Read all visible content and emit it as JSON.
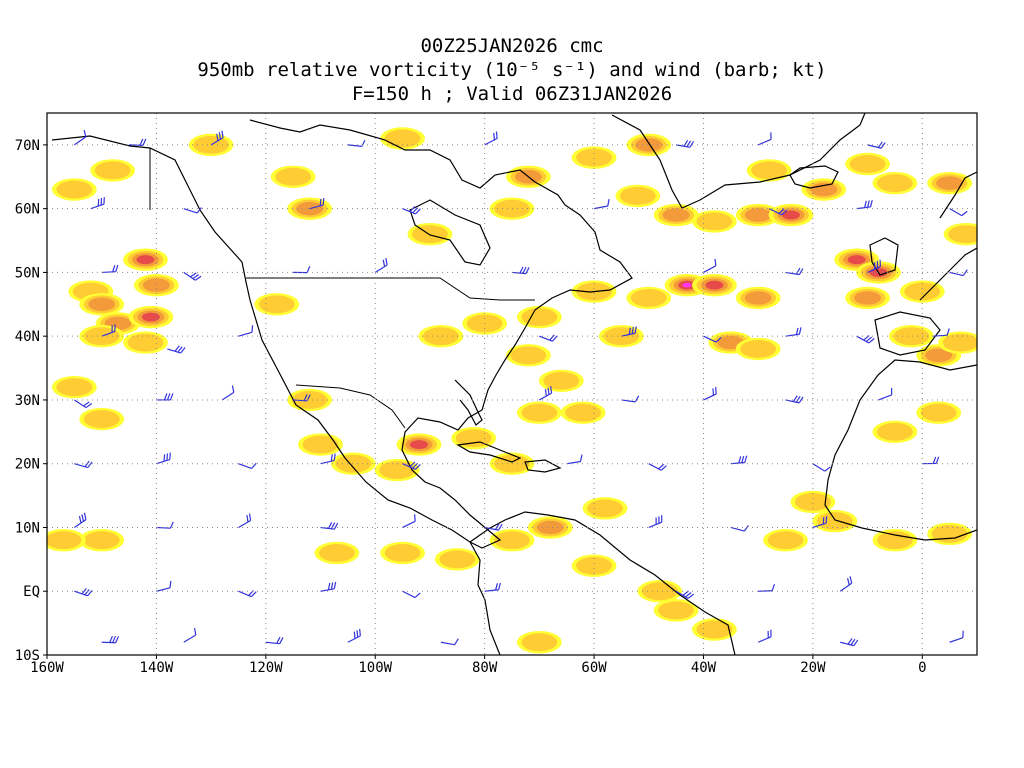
{
  "title": {
    "line1": "00Z25JAN2026 cmc",
    "line2": "950mb relative vorticity (10⁻⁵ s⁻¹) and wind (barb; kt)",
    "line3": "F=150 h ; Valid 06Z31JAN2026"
  },
  "axes": {
    "lon_labels": [
      "160W",
      "140W",
      "120W",
      "100W",
      "80W",
      "60W",
      "40W",
      "20W",
      "0"
    ],
    "lat_labels": [
      "70N",
      "60N",
      "50N",
      "40N",
      "30N",
      "20N",
      "10N",
      "EQ",
      "10S"
    ],
    "lon_values": [
      -160,
      -140,
      -120,
      -100,
      -80,
      -60,
      -40,
      -20,
      0
    ],
    "lat_values": [
      70,
      60,
      50,
      40,
      30,
      20,
      10,
      0,
      -10
    ],
    "lon_range": [
      -160,
      10
    ],
    "lat_range": [
      -10,
      75
    ],
    "grid": "dotted"
  },
  "colors": {
    "coast": "#000000",
    "barb": "#3333dd",
    "shade_light": "#ffff33",
    "shade_mid": "#ffcc33",
    "shade_orange": "#f39a3a",
    "shade_red": "#e64a4a",
    "shade_magenta": "#ff33ff"
  },
  "vorticity_blobs": [
    {
      "lon": -152,
      "lat": 47,
      "level": 1
    },
    {
      "lon": -150,
      "lat": 45,
      "level": 2
    },
    {
      "lon": -147,
      "lat": 42,
      "level": 2
    },
    {
      "lon": -142,
      "lat": 52,
      "level": 3
    },
    {
      "lon": -141,
      "lat": 43,
      "level": 3
    },
    {
      "lon": -140,
      "lat": 48,
      "level": 2
    },
    {
      "lon": -142,
      "lat": 39,
      "level": 1
    },
    {
      "lon": -150,
      "lat": 40,
      "level": 1
    },
    {
      "lon": -155,
      "lat": 63,
      "level": 1
    },
    {
      "lon": -148,
      "lat": 66,
      "level": 1
    },
    {
      "lon": -130,
      "lat": 70,
      "level": 1
    },
    {
      "lon": -115,
      "lat": 65,
      "level": 1
    },
    {
      "lon": -112,
      "lat": 60,
      "level": 2
    },
    {
      "lon": -95,
      "lat": 71,
      "level": 1
    },
    {
      "lon": -72,
      "lat": 65,
      "level": 2
    },
    {
      "lon": -75,
      "lat": 60,
      "level": 1
    },
    {
      "lon": -90,
      "lat": 56,
      "level": 1
    },
    {
      "lon": -80,
      "lat": 42,
      "level": 1
    },
    {
      "lon": -88,
      "lat": 40,
      "level": 1
    },
    {
      "lon": -70,
      "lat": 43,
      "level": 1
    },
    {
      "lon": -60,
      "lat": 47,
      "level": 1
    },
    {
      "lon": -50,
      "lat": 70,
      "level": 2
    },
    {
      "lon": -52,
      "lat": 62,
      "level": 1
    },
    {
      "lon": -45,
      "lat": 59,
      "level": 2
    },
    {
      "lon": -30,
      "lat": 59,
      "level": 2
    },
    {
      "lon": -24,
      "lat": 59,
      "level": 3
    },
    {
      "lon": -38,
      "lat": 58,
      "level": 1
    },
    {
      "lon": -43,
      "lat": 48,
      "level": 4
    },
    {
      "lon": -38,
      "lat": 48,
      "level": 3
    },
    {
      "lon": -50,
      "lat": 46,
      "level": 1
    },
    {
      "lon": -30,
      "lat": 46,
      "level": 2
    },
    {
      "lon": -35,
      "lat": 39,
      "level": 2
    },
    {
      "lon": -30,
      "lat": 38,
      "level": 1
    },
    {
      "lon": -55,
      "lat": 40,
      "level": 1
    },
    {
      "lon": -72,
      "lat": 37,
      "level": 1
    },
    {
      "lon": -66,
      "lat": 33,
      "level": 1
    },
    {
      "lon": -70,
      "lat": 28,
      "level": 1
    },
    {
      "lon": -62,
      "lat": 28,
      "level": 1
    },
    {
      "lon": -92,
      "lat": 23,
      "level": 3
    },
    {
      "lon": -96,
      "lat": 19,
      "level": 1
    },
    {
      "lon": -104,
      "lat": 20,
      "level": 1
    },
    {
      "lon": -112,
      "lat": 30,
      "level": 1
    },
    {
      "lon": -110,
      "lat": 23,
      "level": 1
    },
    {
      "lon": -82,
      "lat": 24,
      "level": 1
    },
    {
      "lon": -75,
      "lat": 20,
      "level": 1
    },
    {
      "lon": -12,
      "lat": 52,
      "level": 3
    },
    {
      "lon": -8,
      "lat": 50,
      "level": 3
    },
    {
      "lon": -10,
      "lat": 46,
      "level": 2
    },
    {
      "lon": -18,
      "lat": 63,
      "level": 2
    },
    {
      "lon": -10,
      "lat": 67,
      "level": 1
    },
    {
      "lon": -28,
      "lat": 66,
      "level": 1
    },
    {
      "lon": -5,
      "lat": 64,
      "level": 1
    },
    {
      "lon": 5,
      "lat": 64,
      "level": 2
    },
    {
      "lon": 8,
      "lat": 56,
      "level": 1
    },
    {
      "lon": 0,
      "lat": 47,
      "level": 1
    },
    {
      "lon": -2,
      "lat": 40,
      "level": 1
    },
    {
      "lon": 3,
      "lat": 37,
      "level": 2
    },
    {
      "lon": 7,
      "lat": 39,
      "level": 1
    },
    {
      "lon": -20,
      "lat": 14,
      "level": 1
    },
    {
      "lon": -16,
      "lat": 11,
      "level": 1
    },
    {
      "lon": -25,
      "lat": 8,
      "level": 1
    },
    {
      "lon": -5,
      "lat": 8,
      "level": 1
    },
    {
      "lon": 5,
      "lat": 9,
      "level": 1
    },
    {
      "lon": -68,
      "lat": 10,
      "level": 2
    },
    {
      "lon": -75,
      "lat": 8,
      "level": 1
    },
    {
      "lon": -85,
      "lat": 5,
      "level": 1
    },
    {
      "lon": -95,
      "lat": 6,
      "level": 1
    },
    {
      "lon": -107,
      "lat": 6,
      "level": 1
    },
    {
      "lon": -150,
      "lat": 8,
      "level": 1
    },
    {
      "lon": -157,
      "lat": 8,
      "level": 1
    },
    {
      "lon": -60,
      "lat": 4,
      "level": 1
    },
    {
      "lon": -48,
      "lat": 0,
      "level": 1
    },
    {
      "lon": -70,
      "lat": -8,
      "level": 1
    },
    {
      "lon": -38,
      "lat": -6,
      "level": 1
    },
    {
      "lon": -45,
      "lat": -3,
      "level": 1
    },
    {
      "lon": -150,
      "lat": 27,
      "level": 1
    },
    {
      "lon": -155,
      "lat": 32,
      "level": 1
    },
    {
      "lon": -118,
      "lat": 45,
      "level": 1
    },
    {
      "lon": -60,
      "lat": 68,
      "level": 1
    },
    {
      "lon": -5,
      "lat": 25,
      "level": 1
    },
    {
      "lon": 3,
      "lat": 28,
      "level": 1
    },
    {
      "lon": -58,
      "lat": 13,
      "level": 1
    }
  ],
  "wind_barbs": [
    {
      "lon": -155,
      "lat": 70
    },
    {
      "lon": -145,
      "lat": 70
    },
    {
      "lon": -130,
      "lat": 70
    },
    {
      "lon": -105,
      "lat": 70
    },
    {
      "lon": -80,
      "lat": 70
    },
    {
      "lon": -45,
      "lat": 70
    },
    {
      "lon": -30,
      "lat": 70
    },
    {
      "lon": -10,
      "lat": 70
    },
    {
      "lon": -152,
      "lat": 60
    },
    {
      "lon": -135,
      "lat": 60
    },
    {
      "lon": -112,
      "lat": 60
    },
    {
      "lon": -95,
      "lat": 60
    },
    {
      "lon": -60,
      "lat": 60
    },
    {
      "lon": -28,
      "lat": 60
    },
    {
      "lon": -12,
      "lat": 60
    },
    {
      "lon": 5,
      "lat": 60
    },
    {
      "lon": -150,
      "lat": 50
    },
    {
      "lon": -135,
      "lat": 50
    },
    {
      "lon": -115,
      "lat": 50
    },
    {
      "lon": -100,
      "lat": 50
    },
    {
      "lon": -75,
      "lat": 50
    },
    {
      "lon": -40,
      "lat": 50
    },
    {
      "lon": -25,
      "lat": 50
    },
    {
      "lon": -10,
      "lat": 50
    },
    {
      "lon": 5,
      "lat": 50
    },
    {
      "lon": -150,
      "lat": 40
    },
    {
      "lon": -138,
      "lat": 38
    },
    {
      "lon": -125,
      "lat": 40
    },
    {
      "lon": -70,
      "lat": 40
    },
    {
      "lon": -55,
      "lat": 40
    },
    {
      "lon": -40,
      "lat": 40
    },
    {
      "lon": -25,
      "lat": 40
    },
    {
      "lon": -12,
      "lat": 40
    },
    {
      "lon": 2,
      "lat": 40
    },
    {
      "lon": -155,
      "lat": 30
    },
    {
      "lon": -140,
      "lat": 30
    },
    {
      "lon": -128,
      "lat": 30
    },
    {
      "lon": -115,
      "lat": 30
    },
    {
      "lon": -70,
      "lat": 30
    },
    {
      "lon": -55,
      "lat": 30
    },
    {
      "lon": -40,
      "lat": 30
    },
    {
      "lon": -25,
      "lat": 30
    },
    {
      "lon": -8,
      "lat": 30
    },
    {
      "lon": -155,
      "lat": 20
    },
    {
      "lon": -140,
      "lat": 20
    },
    {
      "lon": -125,
      "lat": 20
    },
    {
      "lon": -110,
      "lat": 20
    },
    {
      "lon": -95,
      "lat": 20
    },
    {
      "lon": -65,
      "lat": 20
    },
    {
      "lon": -50,
      "lat": 20
    },
    {
      "lon": -35,
      "lat": 20
    },
    {
      "lon": -20,
      "lat": 20
    },
    {
      "lon": 0,
      "lat": 20
    },
    {
      "lon": -155,
      "lat": 10
    },
    {
      "lon": -140,
      "lat": 10
    },
    {
      "lon": -125,
      "lat": 10
    },
    {
      "lon": -110,
      "lat": 10
    },
    {
      "lon": -95,
      "lat": 10
    },
    {
      "lon": -80,
      "lat": 10
    },
    {
      "lon": -50,
      "lat": 10
    },
    {
      "lon": -35,
      "lat": 10
    },
    {
      "lon": -20,
      "lat": 10
    },
    {
      "lon": -155,
      "lat": 0
    },
    {
      "lon": -140,
      "lat": 0
    },
    {
      "lon": -125,
      "lat": 0
    },
    {
      "lon": -110,
      "lat": 0
    },
    {
      "lon": -95,
      "lat": 0
    },
    {
      "lon": -80,
      "lat": 0
    },
    {
      "lon": -45,
      "lat": 0
    },
    {
      "lon": -30,
      "lat": 0
    },
    {
      "lon": -15,
      "lat": 0
    },
    {
      "lon": -150,
      "lat": -8
    },
    {
      "lon": -135,
      "lat": -8
    },
    {
      "lon": -120,
      "lat": -8
    },
    {
      "lon": -105,
      "lat": -8
    },
    {
      "lon": -88,
      "lat": -8
    },
    {
      "lon": -30,
      "lat": -8
    },
    {
      "lon": -15,
      "lat": -8
    },
    {
      "lon": 5,
      "lat": -8
    }
  ]
}
